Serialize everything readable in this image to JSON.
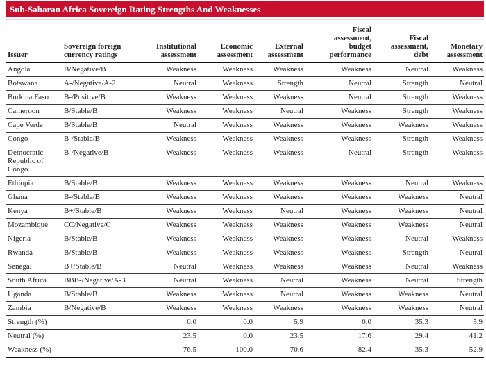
{
  "title": "Sub-Saharan Africa Sovereign Rating Strengths And Weaknesses",
  "theme": {
    "header_bar_red": "#C8102E",
    "header_bar_text": "#ffffff",
    "body_text": "#231f20",
    "rule_line": "#3c3c3c"
  },
  "table": {
    "columns": [
      {
        "label": "Issuer",
        "align": "left"
      },
      {
        "label": "Sovereign foreign\ncurrency ratings",
        "align": "left"
      },
      {
        "label": "Institutional\nassessment",
        "align": "right"
      },
      {
        "label": "Economic\nassessment",
        "align": "right"
      },
      {
        "label": "External\nassessment",
        "align": "right"
      },
      {
        "label": "Fiscal\nassessment,\nbudget\nperformance",
        "align": "right"
      },
      {
        "label": "Fiscal\nassessment,\ndebt",
        "align": "right"
      },
      {
        "label": "Monetary\nassessment",
        "align": "right"
      }
    ],
    "rows": [
      {
        "issuer": "Angola",
        "rating": "B/Negative/B",
        "assessments": [
          "Weakness",
          "Weakness",
          "Weakness",
          "Weakness",
          "Neutral",
          "Weakness"
        ]
      },
      {
        "issuer": "Botswana",
        "rating": "A-/Negative/A-2",
        "assessments": [
          "Neutral",
          "Weakness",
          "Strength",
          "Neutral",
          "Strength",
          "Neutral"
        ]
      },
      {
        "issuer": "Burkina Faso",
        "rating": "B-/Positive/B",
        "assessments": [
          "Weakness",
          "Weakness",
          "Weakness",
          "Neutral",
          "Strength",
          "Weakness"
        ]
      },
      {
        "issuer": "Cameroon",
        "rating": "B/Stable/B",
        "assessments": [
          "Weakness",
          "Weakness",
          "Neutral",
          "Weakness",
          "Strength",
          "Weakness"
        ]
      },
      {
        "issuer": "Cape Verde",
        "rating": "B/Stable/B",
        "assessments": [
          "Neutral",
          "Weakness",
          "Weakness",
          "Weakness",
          "Weakness",
          "Weakness"
        ]
      },
      {
        "issuer": "Congo",
        "rating": "B-/Stable/B",
        "assessments": [
          "Weakness",
          "Weakness",
          "Weakness",
          "Weakness",
          "Strength",
          "Weakness"
        ]
      },
      {
        "issuer": "Democratic Republic of Congo",
        "rating": "B-/Negative/B",
        "assessments": [
          "Weakness",
          "Weakness",
          "Weakness",
          "Neutral",
          "Strength",
          "Weakness"
        ]
      },
      {
        "issuer": "Ethiopia",
        "rating": "B/Stable/B",
        "assessments": [
          "Weakness",
          "Weakness",
          "Weakness",
          "Weakness",
          "Neutral",
          "Weakness"
        ]
      },
      {
        "issuer": "Ghana",
        "rating": "B-/Stable/B",
        "assessments": [
          "Weakness",
          "Weakness",
          "Weakness",
          "Weakness",
          "Weakness",
          "Neutral"
        ]
      },
      {
        "issuer": "Kenya",
        "rating": "B+/Stable/B",
        "assessments": [
          "Weakness",
          "Weakness",
          "Neutral",
          "Weakness",
          "Weakness",
          "Neutral"
        ]
      },
      {
        "issuer": "Mozambique",
        "rating": "CC/Negative/C",
        "assessments": [
          "Weakness",
          "Weakness",
          "Weakness",
          "Weakness",
          "Weakness",
          "Neutral"
        ]
      },
      {
        "issuer": "Nigeria",
        "rating": "B/Stable/B",
        "assessments": [
          "Weakness",
          "Weakness",
          "Weakness",
          "Weakness",
          "Neutral",
          "Weakness"
        ]
      },
      {
        "issuer": "Rwanda",
        "rating": "B/Stable/B",
        "assessments": [
          "Weakness",
          "Weakness",
          "Weakness",
          "Weakness",
          "Strength",
          "Neutral"
        ]
      },
      {
        "issuer": "Senegal",
        "rating": "B+/Stable/B",
        "assessments": [
          "Neutral",
          "Weakness",
          "Weakness",
          "Weakness",
          "Neutral",
          "Weakness"
        ]
      },
      {
        "issuer": "South Africa",
        "rating": "BBB-/Negative/A-3",
        "assessments": [
          "Neutral",
          "Weakness",
          "Neutral",
          "Weakness",
          "Neutral",
          "Strength"
        ]
      },
      {
        "issuer": "Uganda",
        "rating": "B/Stable/B",
        "assessments": [
          "Weakness",
          "Weakness",
          "Neutral",
          "Weakness",
          "Weakness",
          "Neutral"
        ]
      },
      {
        "issuer": "Zambia",
        "rating": "B/Negative/B",
        "assessments": [
          "Weakness",
          "Weakness",
          "Weakness",
          "Weakness",
          "Weakness",
          "Neutral"
        ]
      }
    ],
    "summary_rows": [
      {
        "label": "Strength (%)",
        "values": [
          "0.0",
          "0.0",
          "5.9",
          "0.0",
          "35.3",
          "5.9"
        ]
      },
      {
        "label": "Neutral (%)",
        "values": [
          "23.5",
          "0.0",
          "23.5",
          "17.6",
          "29.4",
          "41.2"
        ]
      },
      {
        "label": "Weakness (%)",
        "values": [
          "76.5",
          "100.0",
          "70.6",
          "82.4",
          "35.3",
          "52.9"
        ]
      }
    ]
  }
}
